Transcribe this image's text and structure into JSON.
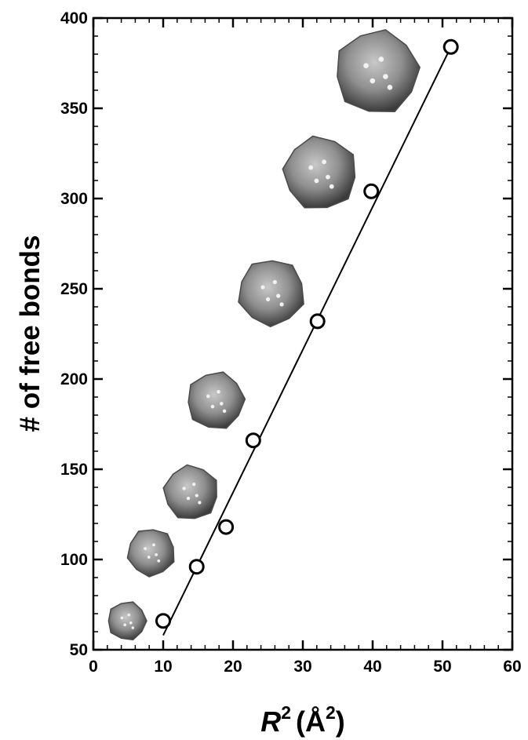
{
  "chart_data": {
    "type": "scatter",
    "title": "",
    "xlabel": "R",
    "xlabel_exponent": "2",
    "xlabel_units": "(Å",
    "xlabel_units_exponent": "2",
    "xlabel_units_close": ")",
    "ylabel": "# of free bonds",
    "xlim": [
      0,
      60
    ],
    "ylim": [
      50,
      400
    ],
    "x_ticks": [
      0,
      10,
      20,
      30,
      40,
      50,
      60
    ],
    "y_ticks": [
      50,
      100,
      150,
      200,
      250,
      300,
      350,
      400
    ],
    "x_minor_step": 2,
    "y_minor_step": 10,
    "grid": false,
    "legend": "none",
    "series": [
      {
        "marker": "open-circle",
        "x": [
          10.0,
          14.8,
          19.0,
          22.9,
          32.1,
          39.8,
          51.2
        ],
        "y": [
          66,
          96,
          118,
          166,
          232,
          304,
          384
        ]
      }
    ],
    "fit_line": {
      "x": [
        10.0,
        51.2
      ],
      "y": [
        58,
        384
      ]
    },
    "cluster_images": [
      {
        "x": 4.8,
        "y": 66,
        "scale": 0.55
      },
      {
        "x": 8.3,
        "y": 104,
        "scale": 0.68
      },
      {
        "x": 14.0,
        "y": 137,
        "scale": 0.78
      },
      {
        "x": 17.5,
        "y": 188,
        "scale": 0.82
      },
      {
        "x": 25.5,
        "y": 248,
        "scale": 0.95
      },
      {
        "x": 32.5,
        "y": 314,
        "scale": 1.05
      },
      {
        "x": 40.6,
        "y": 370,
        "scale": 1.2
      }
    ],
    "colors": {
      "axis": "#000000",
      "marker_fill": "#ffffff",
      "cluster": "#8c8c8c"
    }
  }
}
